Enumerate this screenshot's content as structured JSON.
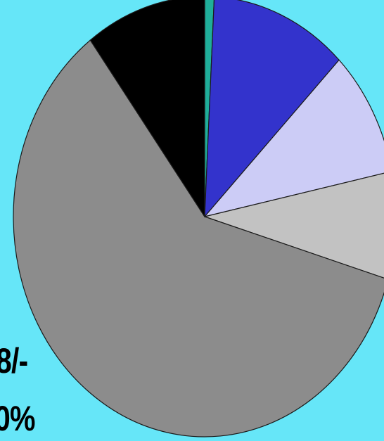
{
  "chart_data": {
    "type": "pie",
    "title": "",
    "slices": [
      {
        "color": "#1fae9a",
        "value": 0.8
      },
      {
        "color": "#3333cc",
        "value": 11.6
      },
      {
        "color": "#ccccf6",
        "value": 9.3
      },
      {
        "color": "#c2c2c2",
        "value": 7.9
      },
      {
        "color": "#8c8c8c",
        "value": 60.2
      },
      {
        "color": "#000000",
        "value": 10.2
      }
    ],
    "start_angle_deg": 0,
    "direction": "clockwise",
    "visible_labels": [
      "8/-",
      "0%"
    ]
  },
  "labels": {
    "label_1": "8/-",
    "label_2": "0%"
  }
}
